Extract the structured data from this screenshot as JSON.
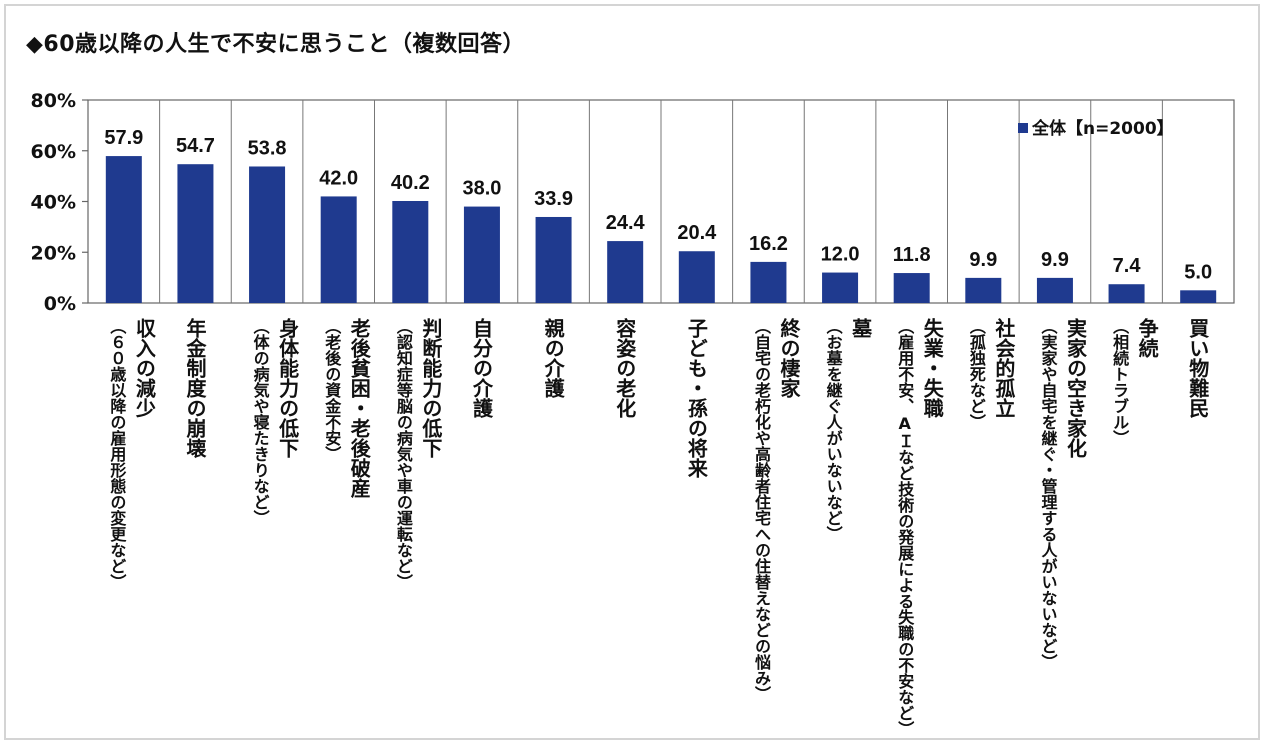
{
  "title": "◆60歳以降の人生で不安に思うこと（複数回答）",
  "chart_data": {
    "type": "bar",
    "title": "60歳以降の人生で不安に思うこと（複数回答）",
    "ylim": [
      0,
      80
    ],
    "yticks": [
      "0%",
      "20%",
      "40%",
      "60%",
      "80%"
    ],
    "ytick_values": [
      0,
      20,
      40,
      60,
      80
    ],
    "legend": {
      "position": "top-right",
      "label": "全体【n=2000】"
    },
    "grid": {
      "vertical_separators": true,
      "horizontal": false
    },
    "bar_color": "#1f3a8f",
    "categories": [
      {
        "main": "収入の減少",
        "sub": "（６０歳以降の雇用形態の変更など）"
      },
      {
        "main": "年金制度の崩壊",
        "sub": ""
      },
      {
        "main": "身体能力の低下",
        "sub": "（体の病気や寝たきりなど）"
      },
      {
        "main": "老後貧困・老後破産",
        "sub": "（老後の資金不安）"
      },
      {
        "main": "判断能力の低下",
        "sub": "（認知症等脳の病気や車の運転など）"
      },
      {
        "main": "自分の介護",
        "sub": ""
      },
      {
        "main": "親の介護",
        "sub": ""
      },
      {
        "main": "容姿の老化",
        "sub": ""
      },
      {
        "main": "子ども・孫の将来",
        "sub": ""
      },
      {
        "main": "終の棲家",
        "sub": "（自宅の老朽化や高齢者住宅への住替えなどの悩み）"
      },
      {
        "main": "墓",
        "sub": "（お墓を継ぐ人がいないなど）"
      },
      {
        "main": "失業・失職",
        "sub": "（雇用不安、AＩなど技術の発展による失職の不安など）"
      },
      {
        "main": "社会的孤立",
        "sub": "（孤独死など）"
      },
      {
        "main": "実家の空き家化",
        "sub": "（実家や自宅を継ぐ・管理する人がいないなど）"
      },
      {
        "main": "争続",
        "sub": "（相続トラブル）"
      },
      {
        "main": "買い物難民",
        "sub": ""
      }
    ],
    "series": [
      {
        "name": "全体【n=2000】",
        "values": [
          57.9,
          54.7,
          53.8,
          42.0,
          40.2,
          38.0,
          33.9,
          24.4,
          20.4,
          16.2,
          12.0,
          11.8,
          9.9,
          9.9,
          7.4,
          5.0
        ],
        "labels": [
          "57.9",
          "54.7",
          "53.8",
          "42.0",
          "40.2",
          "38.0",
          "33.9",
          "24.4",
          "20.4",
          "16.2",
          "12.0",
          "11.8",
          "9.9",
          "9.9",
          "7.4",
          "5.0"
        ]
      }
    ]
  }
}
